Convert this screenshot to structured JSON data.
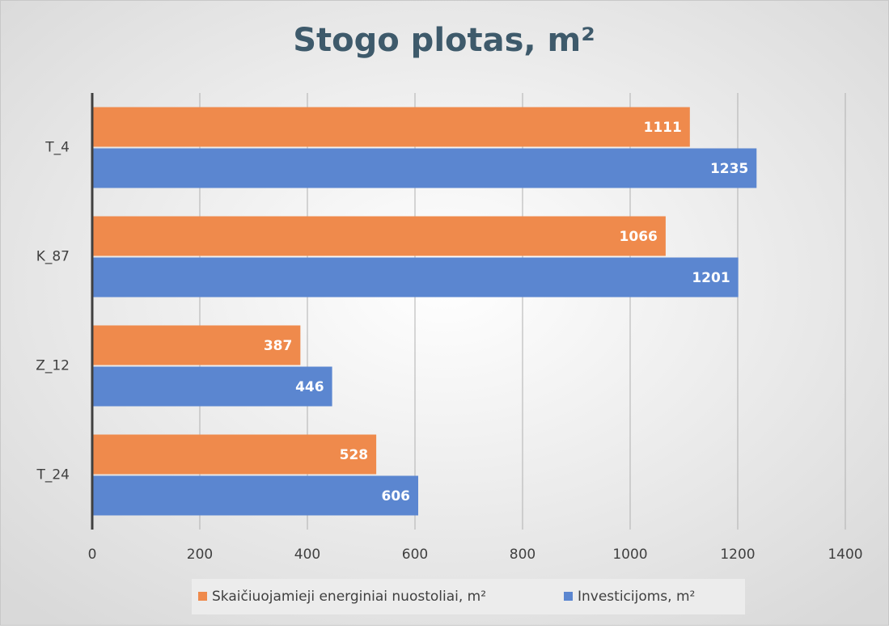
{
  "chart_data": {
    "type": "bar",
    "orientation": "horizontal",
    "title": "Stogo plotas, m²",
    "categories": [
      "T_4",
      "K_87",
      "Z_12",
      "T_24"
    ],
    "series": [
      {
        "name": "Skaičiuojamieji energiniai nuostoliai, m²",
        "color": "#ef8a4c",
        "values": [
          1111,
          1066,
          387,
          528
        ]
      },
      {
        "name": "Investicijoms, m²",
        "color": "#5b86d0",
        "values": [
          1235,
          1201,
          446,
          606
        ]
      }
    ],
    "xlim": [
      0,
      1400
    ],
    "xticks": [
      0,
      200,
      400,
      600,
      800,
      1000,
      1200,
      1400
    ],
    "grid": true,
    "legend": "bottom"
  }
}
